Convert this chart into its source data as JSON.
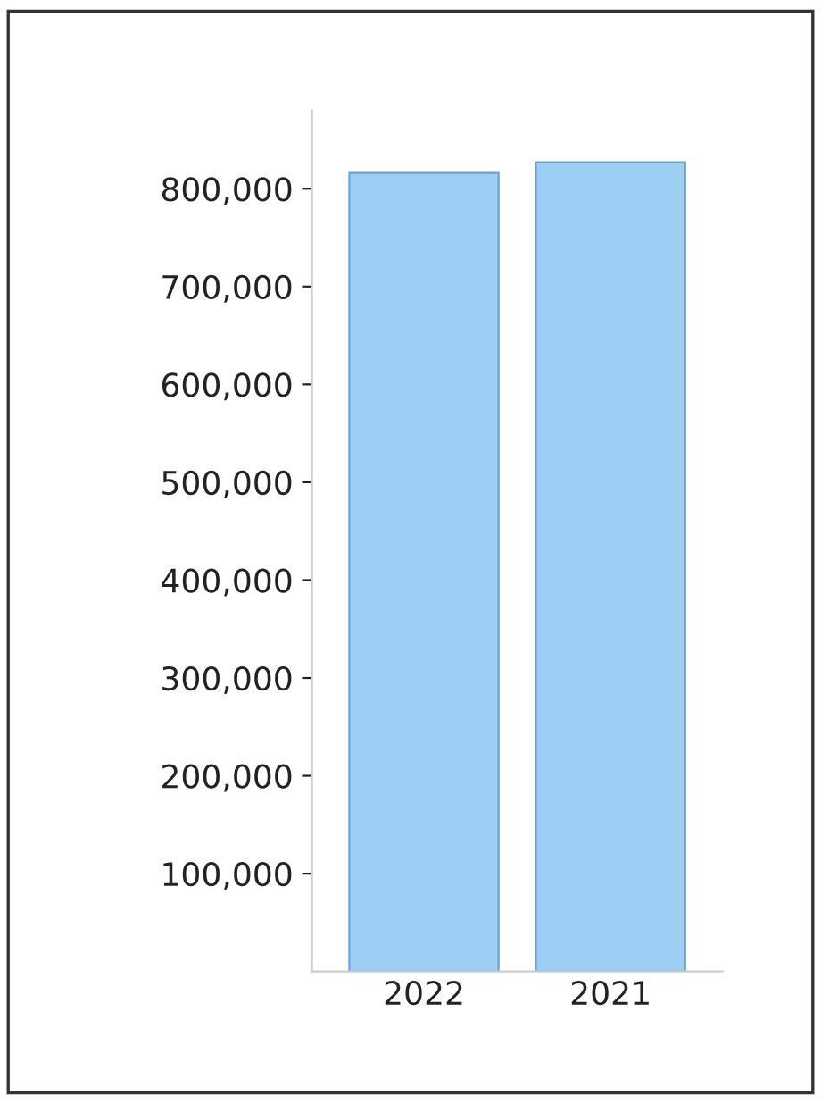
{
  "chart_data": {
    "type": "bar",
    "categories": [
      "2022",
      "2021"
    ],
    "values": [
      816000,
      827000
    ],
    "color": "#9dcff5",
    "ylim": [
      0,
      880000
    ],
    "yticks": [
      {
        "value": 100000,
        "label": "100,000"
      },
      {
        "value": 200000,
        "label": "200,000"
      },
      {
        "value": 300000,
        "label": "300,000"
      },
      {
        "value": 400000,
        "label": "400,000"
      },
      {
        "value": 500000,
        "label": "500,000"
      },
      {
        "value": 600000,
        "label": "600,000"
      },
      {
        "value": 700000,
        "label": "700,000"
      },
      {
        "value": 800000,
        "label": "800,000"
      }
    ],
    "grid": false
  }
}
